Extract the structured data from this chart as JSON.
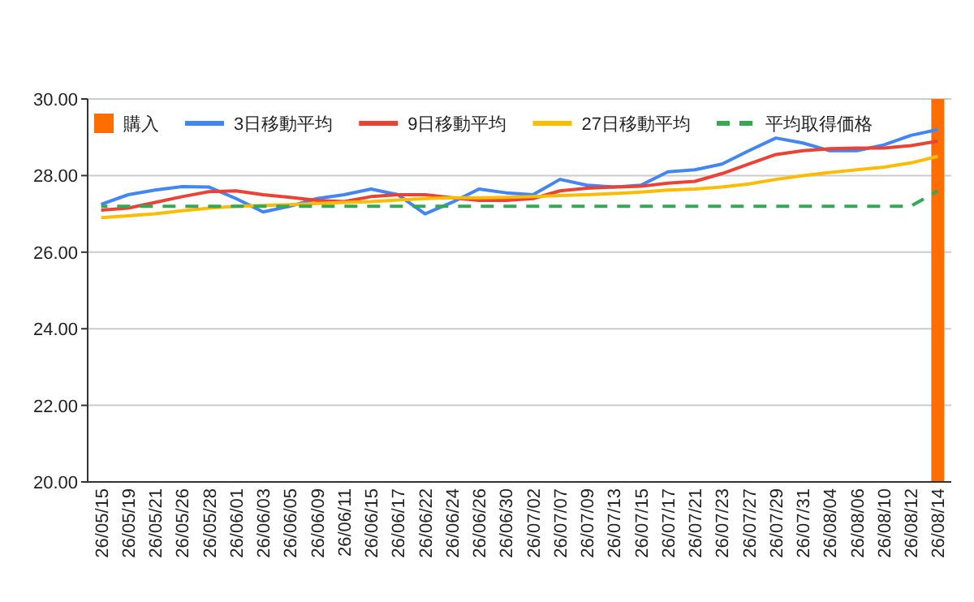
{
  "chart_data": {
    "type": "line",
    "categories": [
      "26/05/15",
      "26/05/19",
      "26/05/21",
      "26/05/26",
      "26/05/28",
      "26/06/01",
      "26/06/03",
      "26/06/05",
      "26/06/09",
      "26/06/11",
      "26/06/15",
      "26/06/17",
      "26/06/22",
      "26/06/24",
      "26/06/26",
      "26/06/30",
      "26/07/02",
      "26/07/07",
      "26/07/09",
      "26/07/13",
      "26/07/15",
      "26/07/17",
      "26/07/21",
      "26/07/23",
      "26/07/27",
      "26/07/29",
      "26/07/31",
      "26/08/04",
      "26/08/06",
      "26/08/10",
      "26/08/12",
      "26/08/14"
    ],
    "series": [
      {
        "name": "購入",
        "type": "bar",
        "color": "#ff6d01",
        "values": [
          null,
          null,
          null,
          null,
          null,
          null,
          null,
          null,
          null,
          null,
          null,
          null,
          null,
          null,
          null,
          null,
          null,
          null,
          null,
          null,
          null,
          null,
          null,
          null,
          null,
          null,
          null,
          null,
          null,
          null,
          null,
          30
        ]
      },
      {
        "name": "3日移動平均",
        "color": "#4285f4",
        "line_style": "solid",
        "values": [
          27.25,
          27.5,
          27.62,
          27.71,
          27.7,
          27.4,
          27.05,
          27.2,
          27.4,
          27.5,
          27.65,
          27.5,
          27.0,
          27.3,
          27.65,
          27.55,
          27.5,
          27.9,
          27.75,
          27.7,
          27.75,
          28.1,
          28.15,
          28.3,
          28.65,
          28.98,
          28.85,
          28.65,
          28.65,
          28.8,
          29.05,
          29.2
        ]
      },
      {
        "name": "9日移動平均",
        "color": "#ea4335",
        "line_style": "solid",
        "values": [
          27.1,
          27.15,
          27.3,
          27.45,
          27.58,
          27.6,
          27.5,
          27.43,
          27.35,
          27.32,
          27.45,
          27.5,
          27.5,
          27.42,
          27.35,
          27.35,
          27.4,
          27.6,
          27.67,
          27.7,
          27.72,
          27.8,
          27.85,
          28.05,
          28.3,
          28.55,
          28.65,
          28.7,
          28.72,
          28.72,
          28.78,
          28.9
        ]
      },
      {
        "name": "27日移動平均",
        "color": "#fbbc04",
        "line_style": "solid",
        "values": [
          26.9,
          26.95,
          27.0,
          27.08,
          27.15,
          27.2,
          27.22,
          27.24,
          27.27,
          27.3,
          27.32,
          27.36,
          27.4,
          27.42,
          27.42,
          27.43,
          27.45,
          27.48,
          27.5,
          27.53,
          27.57,
          27.62,
          27.65,
          27.7,
          27.78,
          27.9,
          28.0,
          28.08,
          28.15,
          28.22,
          28.33,
          28.5
        ]
      },
      {
        "name": "平均取得価格",
        "color": "#34a853",
        "line_style": "dashed",
        "values": [
          27.2,
          27.2,
          27.2,
          27.2,
          27.2,
          27.2,
          27.2,
          27.2,
          27.2,
          27.2,
          27.2,
          27.2,
          27.2,
          27.2,
          27.2,
          27.2,
          27.2,
          27.2,
          27.2,
          27.2,
          27.2,
          27.2,
          27.2,
          27.2,
          27.2,
          27.2,
          27.2,
          27.2,
          27.2,
          27.2,
          27.2,
          27.6
        ]
      }
    ],
    "ylim": [
      20,
      30
    ],
    "yticks": [
      {
        "value": 20,
        "label": "20.00"
      },
      {
        "value": 22,
        "label": "22.00"
      },
      {
        "value": 24,
        "label": "24.00"
      },
      {
        "value": 26,
        "label": "26.00"
      },
      {
        "value": 28,
        "label": "28.00"
      },
      {
        "value": 30,
        "label": "30.00"
      }
    ],
    "grid": "y",
    "legend": "top left",
    "marker": "none"
  }
}
